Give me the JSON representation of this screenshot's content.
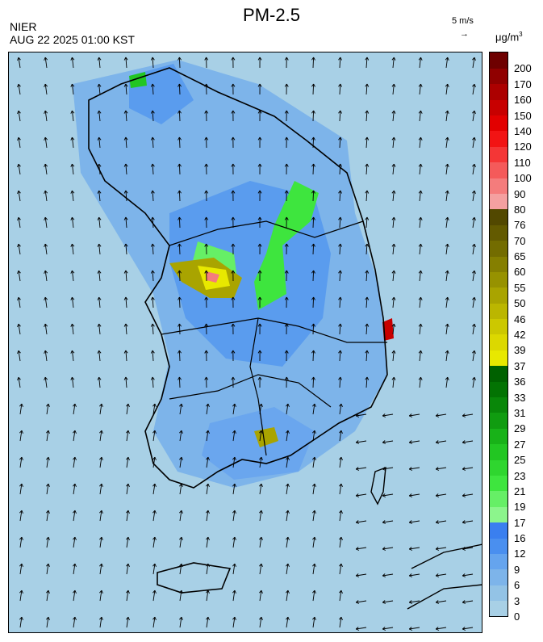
{
  "title": "PM-2.5",
  "organization": "NIER",
  "timestamp": "AUG 22 2025 01:00 KST",
  "wind_scale": {
    "label": "5 m/s",
    "arrow": "→"
  },
  "unit": {
    "base": "μg/m",
    "exp": "3"
  },
  "colorbar": {
    "ticks": [
      "0",
      "3",
      "6",
      "9",
      "12",
      "16",
      "17",
      "19",
      "21",
      "23",
      "25",
      "27",
      "29",
      "31",
      "33",
      "36",
      "37",
      "39",
      "42",
      "46",
      "50",
      "55",
      "60",
      "65",
      "70",
      "76",
      "80",
      "90",
      "100",
      "110",
      "120",
      "140",
      "150",
      "160",
      "170",
      "200"
    ],
    "colors": [
      "#a8d0e6",
      "#93c3e6",
      "#7db4ea",
      "#65a4ee",
      "#4a8fef",
      "#3a7fef",
      "#8cf58c",
      "#66ef66",
      "#3ee53e",
      "#2fd62f",
      "#22c622",
      "#18b218",
      "#109c10",
      "#098709",
      "#037303",
      "#006100",
      "#e8e800",
      "#dcd800",
      "#ccc800",
      "#bbb600",
      "#a9a400",
      "#979200",
      "#857f00",
      "#736c00",
      "#635a00",
      "#524800",
      "#f4a0a0",
      "#f47c7c",
      "#f45a5a",
      "#f43636",
      "#f21414",
      "#e20000",
      "#c80000",
      "#ac0000",
      "#900000",
      "#6e0000"
    ]
  }
}
